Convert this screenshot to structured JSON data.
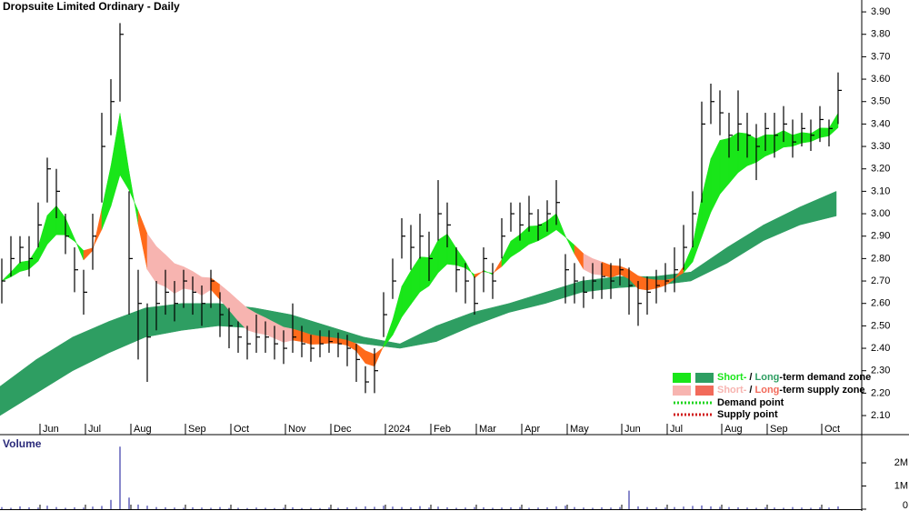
{
  "chart_data": {
    "type": "ohlc",
    "title": "Dropsuite Limited Ordinary - Daily",
    "categories": [
      null,
      null,
      null,
      null,
      null,
      "Jun",
      null,
      null,
      null,
      null,
      "Jul",
      null,
      null,
      null,
      null,
      "Aug",
      null,
      null,
      null,
      null,
      null,
      "Sep",
      null,
      null,
      null,
      null,
      "Oct",
      null,
      null,
      null,
      null,
      null,
      "Nov",
      null,
      null,
      null,
      null,
      "Dec",
      null,
      null,
      null,
      null,
      null,
      "2024",
      null,
      null,
      null,
      null,
      "Feb",
      null,
      null,
      null,
      null,
      "Mar",
      null,
      null,
      null,
      null,
      "Apr",
      null,
      null,
      null,
      null,
      "May",
      null,
      null,
      null,
      null,
      null,
      "Jun",
      null,
      null,
      null,
      null,
      "Jul",
      null,
      null,
      null,
      null,
      null,
      "Aug",
      null,
      null,
      null,
      null,
      "Sep",
      null,
      null,
      null,
      null,
      null,
      "Oct",
      null
    ],
    "close": [
      2.7,
      2.8,
      2.85,
      2.8,
      2.95,
      3.2,
      3.1,
      2.9,
      2.75,
      2.65,
      2.9,
      3.3,
      3.5,
      3.8,
      2.8,
      2.6,
      2.45,
      2.6,
      2.65,
      2.6,
      2.7,
      2.65,
      2.6,
      2.7,
      2.55,
      2.5,
      2.45,
      2.42,
      2.45,
      2.45,
      2.42,
      2.4,
      2.45,
      2.42,
      2.4,
      2.42,
      2.43,
      2.42,
      2.4,
      2.35,
      2.25,
      2.3,
      2.55,
      2.7,
      2.9,
      2.85,
      2.9,
      2.8,
      3.0,
      2.95,
      2.75,
      2.7,
      2.6,
      2.8,
      2.7,
      2.9,
      3.0,
      2.95,
      3.0,
      2.95,
      3.0,
      3.05,
      2.75,
      2.7,
      2.65,
      2.7,
      2.72,
      2.7,
      2.75,
      2.68,
      2.6,
      2.65,
      2.68,
      2.7,
      2.75,
      2.85,
      3.0,
      3.4,
      3.5,
      3.45,
      3.35,
      3.4,
      3.35,
      3.3,
      3.38,
      3.35,
      3.4,
      3.32,
      3.38,
      3.35,
      3.42,
      3.38,
      3.55
    ],
    "high": [
      2.8,
      2.9,
      2.9,
      2.9,
      3.05,
      3.25,
      3.2,
      3.0,
      2.85,
      2.75,
      3.0,
      3.45,
      3.6,
      3.85,
      3.1,
      2.75,
      2.6,
      2.7,
      2.75,
      2.7,
      2.75,
      2.72,
      2.68,
      2.75,
      2.65,
      2.58,
      2.52,
      2.5,
      2.55,
      2.52,
      2.5,
      2.48,
      2.6,
      2.5,
      2.46,
      2.48,
      2.48,
      2.47,
      2.46,
      2.42,
      2.32,
      2.4,
      2.65,
      2.8,
      2.98,
      2.95,
      3.0,
      2.92,
      3.15,
      3.05,
      2.85,
      2.78,
      2.72,
      2.85,
      2.78,
      2.98,
      3.05,
      3.05,
      3.08,
      3.02,
      3.06,
      3.15,
      2.82,
      2.78,
      2.72,
      2.78,
      2.78,
      2.78,
      2.8,
      2.76,
      2.7,
      2.72,
      2.75,
      2.78,
      2.85,
      2.95,
      3.1,
      3.5,
      3.58,
      3.55,
      3.45,
      3.55,
      3.45,
      3.4,
      3.45,
      3.45,
      3.48,
      3.42,
      3.45,
      3.42,
      3.48,
      3.42,
      3.63
    ],
    "low": [
      2.6,
      2.72,
      2.78,
      2.72,
      2.85,
      3.05,
      2.98,
      2.82,
      2.65,
      2.55,
      2.75,
      3.05,
      3.35,
      3.5,
      2.55,
      2.35,
      2.25,
      2.48,
      2.55,
      2.52,
      2.58,
      2.55,
      2.5,
      2.58,
      2.45,
      2.4,
      2.38,
      2.35,
      2.38,
      2.38,
      2.35,
      2.33,
      2.38,
      2.36,
      2.34,
      2.36,
      2.38,
      2.36,
      2.32,
      2.25,
      2.2,
      2.2,
      2.45,
      2.62,
      2.8,
      2.75,
      2.8,
      2.7,
      2.88,
      2.85,
      2.65,
      2.6,
      2.55,
      2.65,
      2.62,
      2.8,
      2.92,
      2.88,
      2.92,
      2.88,
      2.92,
      2.95,
      2.6,
      2.6,
      2.58,
      2.62,
      2.62,
      2.62,
      2.68,
      2.55,
      2.5,
      2.55,
      2.6,
      2.65,
      2.65,
      2.75,
      2.85,
      3.05,
      3.4,
      3.35,
      3.25,
      3.28,
      3.25,
      3.15,
      3.28,
      3.25,
      3.32,
      3.25,
      3.3,
      3.28,
      3.32,
      3.3,
      3.4
    ],
    "long_band": {
      "upper": [
        2.23,
        2.35,
        2.45,
        2.52,
        2.58,
        2.6,
        2.6,
        2.58,
        2.55,
        2.5,
        2.45,
        2.42,
        2.5,
        2.56,
        2.6,
        2.65,
        2.7,
        2.72,
        2.72,
        2.74,
        2.85,
        2.95,
        3.03,
        3.1
      ],
      "lower": [
        2.1,
        2.2,
        2.3,
        2.38,
        2.45,
        2.48,
        2.5,
        2.49,
        2.47,
        2.44,
        2.42,
        2.4,
        2.43,
        2.5,
        2.56,
        2.6,
        2.65,
        2.67,
        2.68,
        2.7,
        2.78,
        2.88,
        2.95,
        2.99
      ]
    },
    "colors": {
      "bar": "#000000",
      "overlap": "#ff6a1a"
    },
    "ylim": [
      2.015,
      3.953
    ],
    "yticks": [
      {
        "value": 2.1,
        "label": "2.10"
      },
      {
        "value": 2.2,
        "label": "2.20"
      },
      {
        "value": 2.3,
        "label": "2.30"
      },
      {
        "value": 2.4,
        "label": "2.40"
      },
      {
        "value": 2.5,
        "label": "2.50"
      },
      {
        "value": 2.6,
        "label": "2.60"
      },
      {
        "value": 2.7,
        "label": "2.70"
      },
      {
        "value": 2.8,
        "label": "2.80"
      },
      {
        "value": 2.9,
        "label": "2.90"
      },
      {
        "value": 3.0,
        "label": "3.00"
      },
      {
        "value": 3.1,
        "label": "3.10"
      },
      {
        "value": 3.2,
        "label": "3.20"
      },
      {
        "value": 3.3,
        "label": "3.30"
      },
      {
        "value": 3.4,
        "label": "3.40"
      },
      {
        "value": 3.5,
        "label": "3.50"
      },
      {
        "value": 3.6,
        "label": "3.60"
      },
      {
        "value": 3.7,
        "label": "3.70"
      },
      {
        "value": 3.8,
        "label": "3.80"
      },
      {
        "value": 3.9,
        "label": "3.90"
      }
    ],
    "legend": {
      "zones": [
        {
          "short": "Short-",
          "sep": "/ ",
          "long": "Long",
          "rest": "-term demand zone",
          "short_color": "#19e619",
          "long_color": "#2e9e62"
        },
        {
          "short": "Short-",
          "sep": "/ ",
          "long": "Long",
          "rest": "-term supply zone",
          "short_color": "#f7b4b0",
          "long_color": "#f26a5a"
        }
      ],
      "points": [
        {
          "label": "Demand point",
          "color": "#1ed41e"
        },
        {
          "label": "Supply point",
          "color": "#d11a1a"
        }
      ]
    },
    "volume": {
      "title": "Volume",
      "color": "#3a3aa8",
      "values": [
        90000,
        60000,
        120000,
        80000,
        70000,
        150000,
        90000,
        60000,
        80000,
        70000,
        110000,
        140000,
        400000,
        2700000,
        500000,
        200000,
        150000,
        90000,
        80000,
        70000,
        60000,
        80000,
        70000,
        60000,
        90000,
        50000,
        60000,
        50000,
        70000,
        60000,
        50000,
        60000,
        80000,
        50000,
        60000,
        50000,
        70000,
        60000,
        80000,
        90000,
        120000,
        100000,
        150000,
        110000,
        90000,
        80000,
        130000,
        70000,
        110000,
        80000,
        60000,
        70000,
        90000,
        80000,
        60000,
        70000,
        80000,
        90000,
        60000,
        70000,
        80000,
        120000,
        150000,
        90000,
        70000,
        60000,
        80000,
        70000,
        90000,
        800000,
        120000,
        90000,
        80000,
        70000,
        90000,
        110000,
        140000,
        160000,
        120000,
        100000,
        90000,
        80000,
        70000,
        60000,
        80000,
        70000,
        60000,
        90000,
        70000,
        60000,
        80000,
        70000,
        120000
      ],
      "ylim": [
        0,
        3140000
      ],
      "yticks": [
        0,
        {
          "value": 1000000,
          "label": "1M"
        },
        {
          "value": 2000000,
          "label": "2M"
        }
      ]
    }
  }
}
